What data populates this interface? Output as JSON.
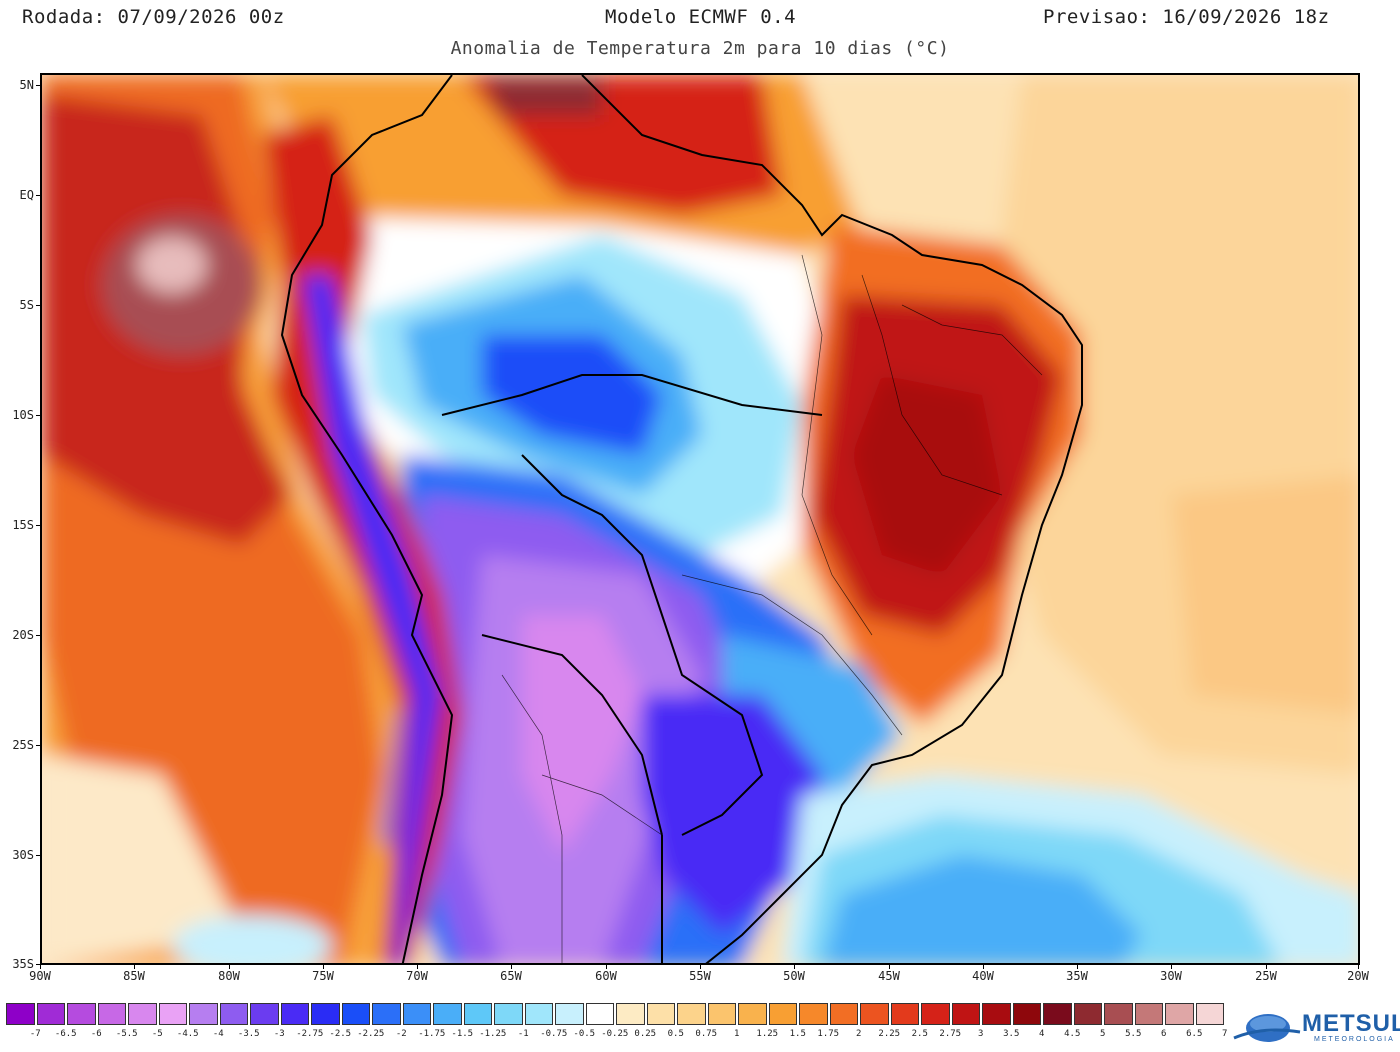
{
  "header": {
    "run": "Rodada: 07/09/2026 00z",
    "model": "Modelo ECMWF 0.4",
    "forecast": "Previsao: 16/09/2026 18z",
    "subtitle": "Anomalia de Temperatura 2m para 10 dias (°C)"
  },
  "map": {
    "lat_labels": [
      "5N",
      "EQ",
      "5S",
      "10S",
      "15S",
      "20S",
      "25S",
      "30S",
      "35S"
    ],
    "lon_labels": [
      "90W",
      "85W",
      "80W",
      "75W",
      "70W",
      "65W",
      "60W",
      "55W",
      "50W",
      "45W",
      "40W",
      "35W",
      "30W",
      "25W",
      "20W"
    ],
    "extent": {
      "lon_min": -90,
      "lon_max": -20,
      "lat_min": -35,
      "lat_max": 5.5
    },
    "background_color": "#fde7c7"
  },
  "colorbar": {
    "colors": [
      "#8e00c8",
      "#a02bd6",
      "#b54bdf",
      "#c768e6",
      "#d887ee",
      "#e9a2f5",
      "#b67ef0",
      "#8e5cf0",
      "#6b3cf0",
      "#4a2bf5",
      "#2a2cf5",
      "#1a4ef8",
      "#2b6ff8",
      "#3b8ff8",
      "#4aaef8",
      "#5ec8f8",
      "#7ed8f8",
      "#a0e6fb",
      "#c8f0fd",
      "#ffffff",
      "#fdebc4",
      "#fde0a8",
      "#fcd38b",
      "#fbc46d",
      "#f9b24d",
      "#f89f33",
      "#f6882a",
      "#f26e24",
      "#ec5420",
      "#e33a1c",
      "#d52218",
      "#c01414",
      "#a80c10",
      "#8e070c",
      "#7a0b1c",
      "#8e2a30",
      "#a84e52",
      "#c47878",
      "#dfa6a6",
      "#f5d6d6"
    ],
    "labels": [
      "-7",
      "-6.5",
      "-6",
      "-5.5",
      "-5",
      "-4.5",
      "-4",
      "-3.5",
      "-3",
      "-2.75",
      "-2.5",
      "-2.25",
      "-2",
      "-1.75",
      "-1.5",
      "-1.25",
      "-1",
      "-0.75",
      "-0.5",
      "-0.25",
      "0.25",
      "0.5",
      "0.75",
      "1",
      "1.25",
      "1.5",
      "1.75",
      "2",
      "2.25",
      "2.5",
      "2.75",
      "3",
      "3.5",
      "4",
      "4.5",
      "5",
      "5.5",
      "6",
      "6.5",
      "7"
    ]
  },
  "logo": {
    "name": "METSUL",
    "tagline": "METEOROLOGIA"
  }
}
